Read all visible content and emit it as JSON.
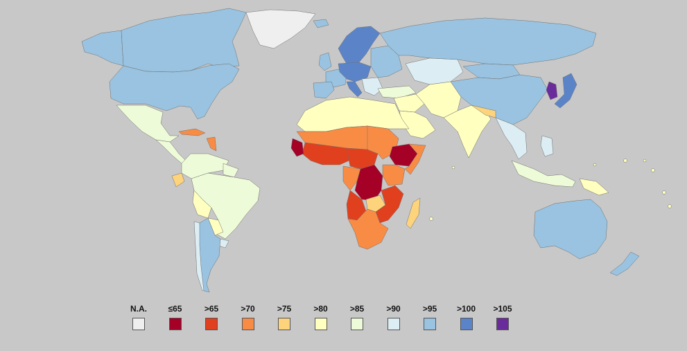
{
  "colors": {
    "ocean": "#c8c8c8",
    "border": "#6f6f6f"
  },
  "legend": [
    {
      "label": "N.A.",
      "color": "#efefef"
    },
    {
      "label": "≤65",
      "color": "#a50026"
    },
    {
      "label": ">65",
      "color": "#e0401e"
    },
    {
      "label": ">70",
      "color": "#f88c45"
    },
    {
      "label": ">75",
      "color": "#fdd37c"
    },
    {
      "label": ">80",
      "color": "#ffffbf"
    },
    {
      "label": ">85",
      "color": "#eefbd8"
    },
    {
      "label": ">90",
      "color": "#dceef4"
    },
    {
      "label": ">95",
      "color": "#99c3e0"
    },
    {
      "label": ">100",
      "color": "#5b84c8"
    },
    {
      "label": ">105",
      "color": "#6a2c9a"
    }
  ],
  "regions": [
    {
      "name": "greenland",
      "category": "N.A."
    },
    {
      "name": "canada",
      "category": ">95"
    },
    {
      "name": "alaska",
      "category": ">95"
    },
    {
      "name": "usa",
      "category": ">95"
    },
    {
      "name": "mexico",
      "category": ">85"
    },
    {
      "name": "central-america",
      "category": ">85"
    },
    {
      "name": "caribbean",
      "category": ">70"
    },
    {
      "name": "northern-south-america",
      "category": ">85"
    },
    {
      "name": "guianas",
      "category": ">85"
    },
    {
      "name": "brazil",
      "category": ">85"
    },
    {
      "name": "ecuador",
      "category": ">75"
    },
    {
      "name": "bolivia",
      "category": ">80"
    },
    {
      "name": "paraguay",
      "category": ">80"
    },
    {
      "name": "uruguay",
      "category": ">90"
    },
    {
      "name": "chile",
      "category": ">90"
    },
    {
      "name": "argentina",
      "category": ">95"
    },
    {
      "name": "scandinavia",
      "category": ">100"
    },
    {
      "name": "central-europe",
      "category": ">100"
    },
    {
      "name": "western-europe",
      "category": ">95"
    },
    {
      "name": "uk",
      "category": ">95"
    },
    {
      "name": "iceland",
      "category": ">95"
    },
    {
      "name": "iberia",
      "category": ">95"
    },
    {
      "name": "italy",
      "category": ">100"
    },
    {
      "name": "eastern-europe",
      "category": ">95"
    },
    {
      "name": "balkans",
      "category": ">90"
    },
    {
      "name": "russia",
      "category": ">95"
    },
    {
      "name": "central-asia",
      "category": ">90"
    },
    {
      "name": "turkey",
      "category": ">85"
    },
    {
      "name": "middle-east",
      "category": ">80"
    },
    {
      "name": "arabia",
      "category": ">80"
    },
    {
      "name": "iran-afghanistan",
      "category": ">80"
    },
    {
      "name": "south-asia",
      "category": ">80"
    },
    {
      "name": "nepal-bangladesh",
      "category": ">75"
    },
    {
      "name": "mongolia",
      "category": ">95"
    },
    {
      "name": "china",
      "category": ">95"
    },
    {
      "name": "korea",
      "category": ">105"
    },
    {
      "name": "japan",
      "category": ">100"
    },
    {
      "name": "southeast-asia",
      "category": ">90"
    },
    {
      "name": "indonesia",
      "category": ">85"
    },
    {
      "name": "philippines",
      "category": ">90"
    },
    {
      "name": "papua",
      "category": ">80"
    },
    {
      "name": "australia",
      "category": ">95"
    },
    {
      "name": "new-zealand",
      "category": ">95"
    },
    {
      "name": "north-africa",
      "category": ">80"
    },
    {
      "name": "sahel-west",
      "category": ">70"
    },
    {
      "name": "west-africa",
      "category": ">65"
    },
    {
      "name": "sierra-leone",
      "category": "≤65"
    },
    {
      "name": "central-africa-north",
      "category": ">65"
    },
    {
      "name": "sudan",
      "category": ">70"
    },
    {
      "name": "ethiopia",
      "category": "≤65"
    },
    {
      "name": "somalia",
      "category": ">70"
    },
    {
      "name": "kenya-uganda",
      "category": ">70"
    },
    {
      "name": "congo",
      "category": ">70"
    },
    {
      "name": "dr-congo",
      "category": "≤65"
    },
    {
      "name": "angola",
      "category": ">65"
    },
    {
      "name": "zambia",
      "category": ">75"
    },
    {
      "name": "southern-africa",
      "category": ">70"
    },
    {
      "name": "mozambique-region",
      "category": ">65"
    },
    {
      "name": "madagascar",
      "category": ">75"
    },
    {
      "name": "islands",
      "category": ">80"
    }
  ]
}
